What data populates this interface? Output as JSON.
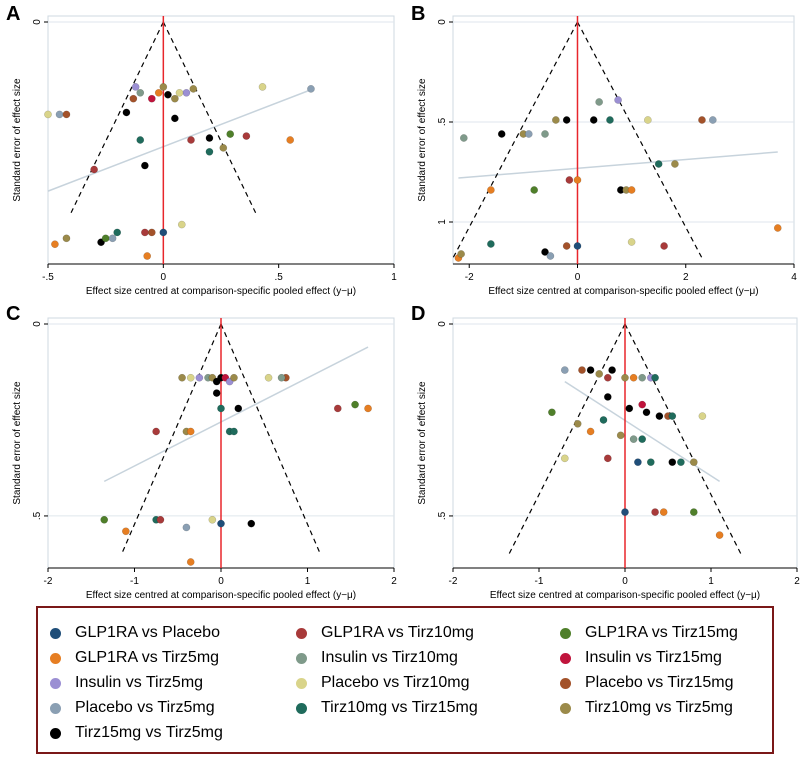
{
  "colors": {
    "GLP1RA vs Placebo": "#1f4e79",
    "GLP1RA vs Tirz5mg": "#e67e22",
    "Insulin vs Tirz5mg": "#9b8fd3",
    "Placebo vs Tirz5mg": "#8a9fb3",
    "Tirz15mg vs Tirz5mg": "#000000",
    "GLP1RA vs Tirz10mg": "#a83a3a",
    "Insulin vs Tirz10mg": "#7f9a8a",
    "Placebo vs Tirz10mg": "#d9d48a",
    "Tirz10mg vs Tirz15mg": "#1f6b5c",
    "GLP1RA vs Tirz15mg": "#4f7f2a",
    "Insulin vs Tirz15mg": "#c0143c",
    "Placebo vs Tirz15mg": "#a3522a",
    "Tirz10mg vs Tirz5mg": "#9b8a4a"
  },
  "legend": {
    "entries": [
      "GLP1RA vs Placebo",
      "GLP1RA vs Tirz10mg",
      "GLP1RA vs Tirz15mg",
      "GLP1RA vs Tirz5mg",
      "Insulin vs Tirz10mg",
      "Insulin vs Tirz15mg",
      "Insulin vs Tirz5mg",
      "Placebo vs Tirz10mg",
      "Placebo vs Tirz15mg",
      "Placebo vs Tirz5mg",
      "Tirz10mg vs Tirz15mg",
      "Tirz10mg vs Tirz5mg",
      "Tirz15mg vs Tirz5mg"
    ]
  },
  "chart_data": [
    {
      "panel": "A",
      "type": "scatter",
      "title": "",
      "ylabel": "Standard error of effect size",
      "xlabel": "Effect size centred at comparison-specific pooled effect (y_iXY−μ_XY)",
      "xlim": [
        -0.5,
        1.0
      ],
      "ylim": [
        0,
        1.2
      ],
      "xticks": [
        -0.5,
        0,
        0.5,
        1
      ],
      "xtick_labels": [
        "-.5",
        "0",
        ".5",
        "1"
      ],
      "yticks": [
        0
      ],
      "ytick_labels": [
        "0"
      ],
      "reference_line_x": 0,
      "funnel_apex_y": 0,
      "funnel_base_y": 0.97,
      "funnel_base_half_width": 0.4,
      "regression_line": [
        [
          -0.5,
          0.86
        ],
        [
          0.65,
          0.34
        ]
      ],
      "points": [
        [
          -0.5,
          0.47,
          "Placebo vs Tirz10mg"
        ],
        [
          -0.45,
          0.47,
          "Placebo vs Tirz5mg"
        ],
        [
          -0.42,
          0.47,
          "Placebo vs Tirz15mg"
        ],
        [
          -0.3,
          0.75,
          "GLP1RA vs Tirz10mg"
        ],
        [
          -0.1,
          0.6,
          "Tirz10mg vs Tirz15mg"
        ],
        [
          -0.08,
          0.73,
          "Tirz15mg vs Tirz5mg"
        ],
        [
          -0.05,
          0.39,
          "Insulin vs Tirz15mg"
        ],
        [
          0.0,
          0.33,
          "Tirz10mg vs Tirz5mg"
        ],
        [
          -0.02,
          0.36,
          "GLP1RA vs Tirz5mg"
        ],
        [
          0.02,
          0.37,
          "Tirz15mg vs Tirz5mg"
        ],
        [
          0.05,
          0.39,
          "Tirz10mg vs Tirz5mg"
        ],
        [
          0.1,
          0.36,
          "Insulin vs Tirz5mg"
        ],
        [
          -0.1,
          0.36,
          "Insulin vs Tirz10mg"
        ],
        [
          -0.12,
          0.33,
          "Insulin vs Tirz5mg"
        ],
        [
          -0.13,
          0.39,
          "Placebo vs Tirz15mg"
        ],
        [
          -0.16,
          0.46,
          "Tirz15mg vs Tirz5mg"
        ],
        [
          0.07,
          0.36,
          "Placebo vs Tirz10mg"
        ],
        [
          0.13,
          0.34,
          "Tirz10mg vs Tirz5mg"
        ],
        [
          0.05,
          0.49,
          "Tirz15mg vs Tirz5mg"
        ],
        [
          0.12,
          0.6,
          "GLP1RA vs Tirz10mg"
        ],
        [
          0.2,
          0.66,
          "Tirz10mg vs Tirz15mg"
        ],
        [
          0.2,
          0.59,
          "Tirz15mg vs Tirz5mg"
        ],
        [
          0.26,
          0.64,
          "Tirz10mg vs Tirz5mg"
        ],
        [
          0.29,
          0.57,
          "GLP1RA vs Tirz15mg"
        ],
        [
          0.36,
          0.58,
          "GLP1RA vs Tirz10mg"
        ],
        [
          0.43,
          0.33,
          "Placebo vs Tirz10mg"
        ],
        [
          0.55,
          0.6,
          "GLP1RA vs Tirz5mg"
        ],
        [
          0.64,
          0.34,
          "Placebo vs Tirz5mg"
        ],
        [
          -0.42,
          1.1,
          "Tirz10mg vs Tirz5mg"
        ],
        [
          -0.47,
          1.13,
          "GLP1RA vs Tirz5mg"
        ],
        [
          -0.27,
          1.12,
          "Tirz15mg vs Tirz5mg"
        ],
        [
          -0.2,
          1.07,
          "Tirz10mg vs Tirz15mg"
        ],
        [
          -0.08,
          1.07,
          "GLP1RA vs Tirz10mg"
        ],
        [
          0.0,
          1.07,
          "GLP1RA vs Placebo"
        ],
        [
          -0.05,
          1.07,
          "Placebo vs Tirz15mg"
        ],
        [
          0.08,
          1.03,
          "Placebo vs Tirz10mg"
        ],
        [
          -0.25,
          1.1,
          "GLP1RA vs Tirz15mg"
        ],
        [
          -0.22,
          1.1,
          "Placebo vs Tirz5mg"
        ],
        [
          -0.07,
          1.19,
          "GLP1RA vs Tirz5mg"
        ]
      ]
    },
    {
      "panel": "B",
      "type": "scatter",
      "title": "",
      "ylabel": "Standard error of effect size",
      "xlabel": "Effect size centred at comparison-specific pooled effect (y_iXY−μ_XY)",
      "xlim": [
        -2.3,
        4.0
      ],
      "ylim": [
        0,
        1.18
      ],
      "xticks": [
        -2,
        0,
        2,
        4
      ],
      "xtick_labels": [
        "-2",
        "0",
        "2",
        "4"
      ],
      "yticks": [
        0,
        0.5,
        1
      ],
      "ytick_labels": [
        "0",
        ".5",
        "1"
      ],
      "reference_line_x": 0,
      "funnel_apex_y": 0,
      "funnel_base_y": 1.18,
      "funnel_base_half_width": 2.3,
      "regression_line": [
        [
          -2.2,
          0.78
        ],
        [
          3.7,
          0.65
        ]
      ],
      "points": [
        [
          -2.1,
          0.58,
          "Insulin vs Tirz10mg"
        ],
        [
          -1.6,
          0.84,
          "GLP1RA vs Tirz5mg"
        ],
        [
          -1.4,
          0.56,
          "Tirz15mg vs Tirz5mg"
        ],
        [
          -1.0,
          0.56,
          "Tirz10mg vs Tirz5mg"
        ],
        [
          -0.9,
          0.56,
          "Placebo vs Tirz5mg"
        ],
        [
          -0.8,
          0.84,
          "GLP1RA vs Tirz15mg"
        ],
        [
          -0.6,
          0.56,
          "Insulin vs Tirz10mg"
        ],
        [
          -0.4,
          0.49,
          "Tirz10mg vs Tirz5mg"
        ],
        [
          -0.2,
          0.49,
          "Tirz15mg vs Tirz5mg"
        ],
        [
          -0.15,
          0.79,
          "GLP1RA vs Tirz10mg"
        ],
        [
          0.0,
          0.79,
          "GLP1RA vs Tirz5mg"
        ],
        [
          0.3,
          0.49,
          "Tirz15mg vs Tirz5mg"
        ],
        [
          0.4,
          0.4,
          "Insulin vs Tirz10mg"
        ],
        [
          0.6,
          0.49,
          "Tirz10mg vs Tirz15mg"
        ],
        [
          0.75,
          0.39,
          "Insulin vs Tirz5mg"
        ],
        [
          0.8,
          0.84,
          "Tirz15mg vs Tirz5mg"
        ],
        [
          0.9,
          0.84,
          "Tirz10mg vs Tirz5mg"
        ],
        [
          1.0,
          0.84,
          "GLP1RA vs Tirz5mg"
        ],
        [
          1.3,
          0.49,
          "Placebo vs Tirz10mg"
        ],
        [
          1.5,
          0.71,
          "Tirz10mg vs Tirz15mg"
        ],
        [
          1.8,
          0.71,
          "Tirz10mg vs Tirz5mg"
        ],
        [
          2.3,
          0.49,
          "Placebo vs Tirz15mg"
        ],
        [
          2.5,
          0.49,
          "Placebo vs Tirz5mg"
        ],
        [
          3.7,
          1.03,
          "GLP1RA vs Tirz5mg"
        ],
        [
          -1.6,
          1.11,
          "Tirz10mg vs Tirz15mg"
        ],
        [
          -2.2,
          1.18,
          "GLP1RA vs Tirz5mg"
        ],
        [
          -2.15,
          1.16,
          "Tirz10mg vs Tirz5mg"
        ],
        [
          -0.6,
          1.15,
          "Tirz15mg vs Tirz5mg"
        ],
        [
          -0.5,
          1.17,
          "Placebo vs Tirz5mg"
        ],
        [
          -0.2,
          1.12,
          "Placebo vs Tirz15mg"
        ],
        [
          0.0,
          1.12,
          "GLP1RA vs Placebo"
        ],
        [
          1.0,
          1.1,
          "Placebo vs Tirz10mg"
        ],
        [
          1.6,
          1.12,
          "GLP1RA vs Tirz10mg"
        ]
      ]
    },
    {
      "panel": "C",
      "type": "scatter",
      "title": "",
      "ylabel": "Standard error of effect size",
      "xlabel": "Effect size centred at comparison-specific pooled effect (y_iXY−μ_XY)",
      "xlim": [
        -2.0,
        2.0
      ],
      "ylim": [
        0,
        0.62
      ],
      "xticks": [
        -2,
        -1,
        0,
        1,
        2
      ],
      "xtick_labels": [
        "-2",
        "-1",
        "0",
        "1",
        "2"
      ],
      "yticks": [
        0,
        0.5
      ],
      "ytick_labels": [
        "0",
        ".5"
      ],
      "reference_line_x": 0,
      "funnel_apex_y": 0,
      "funnel_base_y": 0.6,
      "funnel_base_half_width": 1.15,
      "regression_line": [
        [
          -1.35,
          0.41
        ],
        [
          1.7,
          0.06
        ]
      ],
      "points": [
        [
          -0.75,
          0.28,
          "GLP1RA vs Tirz10mg"
        ],
        [
          -0.4,
          0.28,
          "Tirz10mg vs Tirz5mg"
        ],
        [
          -0.35,
          0.28,
          "GLP1RA vs Tirz5mg"
        ],
        [
          -0.45,
          0.14,
          "Tirz10mg vs Tirz5mg"
        ],
        [
          -0.35,
          0.14,
          "Placebo vs Tirz10mg"
        ],
        [
          -0.25,
          0.14,
          "Insulin vs Tirz5mg"
        ],
        [
          -0.15,
          0.14,
          "Insulin vs Tirz10mg"
        ],
        [
          -0.1,
          0.14,
          "Tirz10mg vs Tirz5mg"
        ],
        [
          -0.05,
          0.15,
          "Tirz15mg vs Tirz5mg"
        ],
        [
          0.0,
          0.14,
          "Tirz15mg vs Tirz5mg"
        ],
        [
          0.05,
          0.14,
          "Insulin vs Tirz15mg"
        ],
        [
          0.1,
          0.15,
          "Insulin vs Tirz5mg"
        ],
        [
          0.15,
          0.14,
          "Tirz10mg vs Tirz5mg"
        ],
        [
          -0.05,
          0.18,
          "Tirz15mg vs Tirz5mg"
        ],
        [
          0.0,
          0.22,
          "Tirz10mg vs Tirz15mg"
        ],
        [
          0.2,
          0.22,
          "Tirz15mg vs Tirz5mg"
        ],
        [
          0.1,
          0.28,
          "Tirz10mg vs Tirz15mg"
        ],
        [
          0.15,
          0.28,
          "Tirz10mg vs Tirz15mg"
        ],
        [
          0.55,
          0.14,
          "Placebo vs Tirz10mg"
        ],
        [
          0.75,
          0.14,
          "Placebo vs Tirz15mg"
        ],
        [
          0.7,
          0.14,
          "Insulin vs Tirz10mg"
        ],
        [
          1.35,
          0.22,
          "GLP1RA vs Tirz10mg"
        ],
        [
          1.55,
          0.21,
          "GLP1RA vs Tirz15mg"
        ],
        [
          1.7,
          0.22,
          "GLP1RA vs Tirz5mg"
        ],
        [
          -1.35,
          0.51,
          "GLP1RA vs Tirz15mg"
        ],
        [
          -1.1,
          0.54,
          "GLP1RA vs Tirz5mg"
        ],
        [
          -0.75,
          0.51,
          "Tirz10mg vs Tirz15mg"
        ],
        [
          -0.7,
          0.51,
          "GLP1RA vs Tirz10mg"
        ],
        [
          -0.4,
          0.53,
          "Placebo vs Tirz5mg"
        ],
        [
          -0.1,
          0.51,
          "Placebo vs Tirz10mg"
        ],
        [
          0.0,
          0.52,
          "GLP1RA vs Placebo"
        ],
        [
          0.35,
          0.52,
          "Tirz15mg vs Tirz5mg"
        ],
        [
          -0.35,
          0.62,
          "GLP1RA vs Tirz5mg"
        ]
      ]
    },
    {
      "panel": "D",
      "type": "scatter",
      "title": "",
      "ylabel": "Standard error of effect size",
      "xlabel": "Effect size centred at comparison-specific pooled effect (y_iXY−μ_XY)",
      "xlim": [
        -2.0,
        2.0
      ],
      "ylim": [
        0,
        0.62
      ],
      "xticks": [
        -2,
        -1,
        0,
        1,
        2
      ],
      "xtick_labels": [
        "-2",
        "-1",
        "0",
        "1",
        "2"
      ],
      "yticks": [
        0,
        0.5
      ],
      "ytick_labels": [
        "0",
        ".5"
      ],
      "reference_line_x": 0,
      "funnel_apex_y": 0,
      "funnel_base_y": 0.6,
      "funnel_base_half_width": 1.35,
      "regression_line": [
        [
          -0.7,
          0.15
        ],
        [
          1.1,
          0.41
        ]
      ],
      "points": [
        [
          -0.7,
          0.12,
          "Placebo vs Tirz5mg"
        ],
        [
          -0.5,
          0.12,
          "Placebo vs Tirz15mg"
        ],
        [
          -0.4,
          0.12,
          "Tirz15mg vs Tirz5mg"
        ],
        [
          -0.3,
          0.13,
          "Tirz10mg vs Tirz5mg"
        ],
        [
          -0.2,
          0.14,
          "GLP1RA vs Tirz10mg"
        ],
        [
          -0.15,
          0.12,
          "Tirz15mg vs Tirz5mg"
        ],
        [
          0.0,
          0.14,
          "Tirz10mg vs Tirz5mg"
        ],
        [
          0.1,
          0.14,
          "GLP1RA vs Tirz5mg"
        ],
        [
          0.2,
          0.14,
          "Insulin vs Tirz10mg"
        ],
        [
          0.3,
          0.14,
          "Insulin vs Tirz5mg"
        ],
        [
          0.35,
          0.14,
          "Tirz10mg vs Tirz15mg"
        ],
        [
          -0.2,
          0.19,
          "Tirz15mg vs Tirz5mg"
        ],
        [
          0.05,
          0.22,
          "Tirz15mg vs Tirz5mg"
        ],
        [
          0.2,
          0.21,
          "Insulin vs Tirz15mg"
        ],
        [
          0.25,
          0.23,
          "Tirz15mg vs Tirz5mg"
        ],
        [
          0.4,
          0.24,
          "Tirz15mg vs Tirz5mg"
        ],
        [
          0.5,
          0.24,
          "Placebo vs Tirz15mg"
        ],
        [
          0.55,
          0.24,
          "Tirz10mg vs Tirz15mg"
        ],
        [
          -0.85,
          0.23,
          "GLP1RA vs Tirz15mg"
        ],
        [
          -0.55,
          0.26,
          "Tirz10mg vs Tirz5mg"
        ],
        [
          -0.4,
          0.28,
          "GLP1RA vs Tirz5mg"
        ],
        [
          -0.25,
          0.25,
          "Tirz10mg vs Tirz15mg"
        ],
        [
          -0.05,
          0.29,
          "Tirz10mg vs Tirz5mg"
        ],
        [
          0.1,
          0.3,
          "Insulin vs Tirz10mg"
        ],
        [
          0.2,
          0.3,
          "Tirz10mg vs Tirz15mg"
        ],
        [
          0.9,
          0.24,
          "Placebo vs Tirz10mg"
        ],
        [
          -0.7,
          0.35,
          "Placebo vs Tirz10mg"
        ],
        [
          -0.2,
          0.35,
          "GLP1RA vs Tirz10mg"
        ],
        [
          0.15,
          0.36,
          "GLP1RA vs Placebo"
        ],
        [
          0.3,
          0.36,
          "Tirz10mg vs Tirz15mg"
        ],
        [
          0.55,
          0.36,
          "Tirz15mg vs Tirz5mg"
        ],
        [
          0.65,
          0.36,
          "Tirz10mg vs Tirz15mg"
        ],
        [
          0.8,
          0.36,
          "Tirz10mg vs Tirz5mg"
        ],
        [
          0.0,
          0.49,
          "GLP1RA vs Placebo"
        ],
        [
          0.35,
          0.49,
          "GLP1RA vs Tirz10mg"
        ],
        [
          0.45,
          0.49,
          "GLP1RA vs Tirz5mg"
        ],
        [
          0.8,
          0.49,
          "GLP1RA vs Tirz15mg"
        ],
        [
          1.1,
          0.55,
          "GLP1RA vs Tirz5mg"
        ]
      ]
    }
  ]
}
